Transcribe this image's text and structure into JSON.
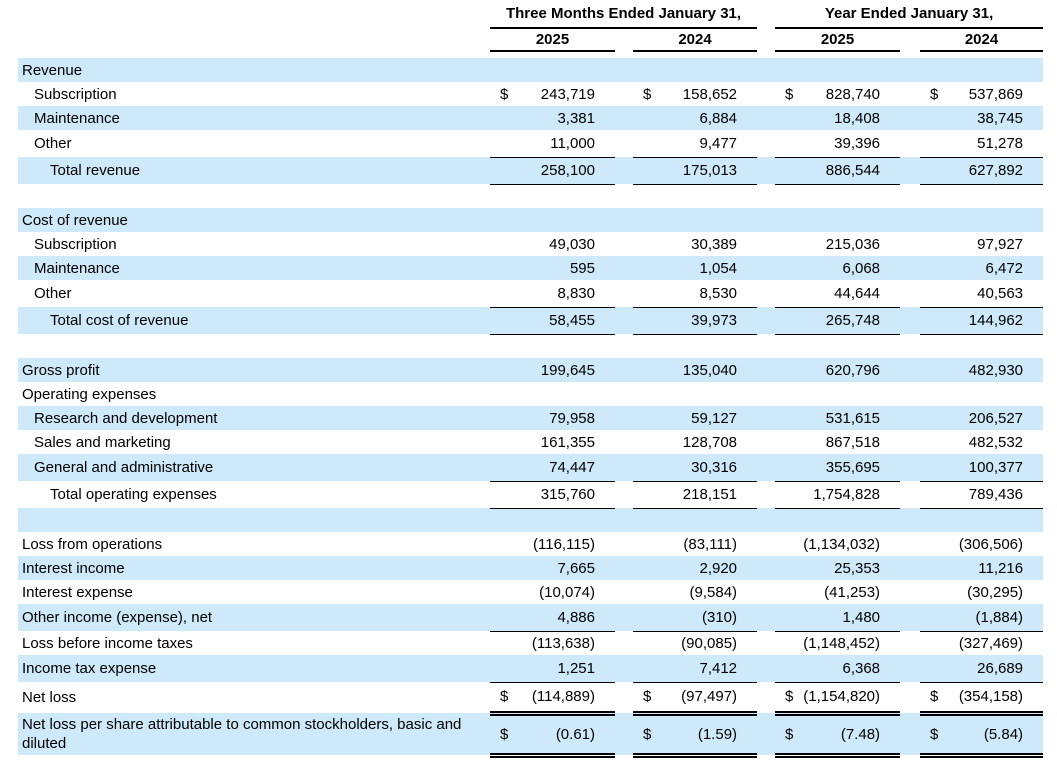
{
  "page": {
    "background": "#ffffff",
    "text_color": "#000000"
  },
  "table": {
    "stripe_color": "#cde9fa",
    "currency": "$",
    "column_groups": [
      {
        "label": "Three Months Ended January 31,",
        "years": [
          "2025",
          "2024"
        ]
      },
      {
        "label": "Year Ended January 31,",
        "years": [
          "2025",
          "2024"
        ]
      }
    ],
    "rows": [
      {
        "label": "Revenue",
        "indent": 0,
        "section": true
      },
      {
        "label": "Subscription",
        "indent": 1,
        "dollar": true,
        "values": [
          "243,719",
          "158,652",
          "828,740",
          "537,869"
        ]
      },
      {
        "label": "Maintenance",
        "indent": 1,
        "values": [
          "3,381",
          "6,884",
          "18,408",
          "38,745"
        ]
      },
      {
        "label": "Other",
        "indent": 1,
        "u": true,
        "values": [
          "11,000",
          "9,477",
          "39,396",
          "51,278"
        ]
      },
      {
        "label": "Total revenue",
        "indent": 2,
        "u": true,
        "values": [
          "258,100",
          "175,013",
          "886,544",
          "627,892"
        ]
      },
      {
        "spacer": true
      },
      {
        "label": "Cost of revenue",
        "indent": 0,
        "section": true
      },
      {
        "label": "Subscription",
        "indent": 1,
        "values": [
          "49,030",
          "30,389",
          "215,036",
          "97,927"
        ]
      },
      {
        "label": "Maintenance",
        "indent": 1,
        "values": [
          "595",
          "1,054",
          "6,068",
          "6,472"
        ]
      },
      {
        "label": "Other",
        "indent": 1,
        "u": true,
        "values": [
          "8,830",
          "8,530",
          "44,644",
          "40,563"
        ]
      },
      {
        "label": "Total cost of revenue",
        "indent": 2,
        "u": true,
        "values": [
          "58,455",
          "39,973",
          "265,748",
          "144,962"
        ]
      },
      {
        "spacer": true
      },
      {
        "label": "Gross profit",
        "indent": 0,
        "values": [
          "199,645",
          "135,040",
          "620,796",
          "482,930"
        ]
      },
      {
        "label": "Operating expenses",
        "indent": 0,
        "section": true
      },
      {
        "label": "Research and development",
        "indent": 1,
        "values": [
          "79,958",
          "59,127",
          "531,615",
          "206,527"
        ]
      },
      {
        "label": "Sales and marketing",
        "indent": 1,
        "values": [
          "161,355",
          "128,708",
          "867,518",
          "482,532"
        ]
      },
      {
        "label": "General and administrative",
        "indent": 1,
        "u": true,
        "values": [
          "74,447",
          "30,316",
          "355,695",
          "100,377"
        ]
      },
      {
        "label": "Total operating expenses",
        "indent": 2,
        "u": true,
        "values": [
          "315,760",
          "218,151",
          "1,754,828",
          "789,436"
        ]
      },
      {
        "spacer": true
      },
      {
        "label": "Loss from operations",
        "indent": 0,
        "values": [
          "(116,115)",
          "(83,111)",
          "(1,134,032)",
          "(306,506)"
        ]
      },
      {
        "label": "Interest income",
        "indent": 0,
        "values": [
          "7,665",
          "2,920",
          "25,353",
          "11,216"
        ]
      },
      {
        "label": "Interest expense",
        "indent": 0,
        "values": [
          "(10,074)",
          "(9,584)",
          "(41,253)",
          "(30,295)"
        ]
      },
      {
        "label": "Other income (expense), net",
        "indent": 0,
        "u": true,
        "values": [
          "4,886",
          "(310)",
          "1,480",
          "(1,884)"
        ]
      },
      {
        "label": "Loss before income taxes",
        "indent": 0,
        "values": [
          "(113,638)",
          "(90,085)",
          "(1,148,452)",
          "(327,469)"
        ]
      },
      {
        "label": "Income tax expense",
        "indent": 0,
        "u": true,
        "values": [
          "1,251",
          "7,412",
          "6,368",
          "26,689"
        ]
      },
      {
        "label": "Net loss",
        "indent": 0,
        "dollar": true,
        "uu": true,
        "values": [
          "(114,889)",
          "(97,497)",
          "(1,154,820)",
          "(354,158)"
        ]
      },
      {
        "label": "Net loss per share attributable to common stockholders, basic and diluted",
        "indent": 0,
        "dollar": true,
        "uu": true,
        "values": [
          "(0.61)",
          "(1.59)",
          "(7.48)",
          "(5.84)"
        ]
      }
    ]
  }
}
